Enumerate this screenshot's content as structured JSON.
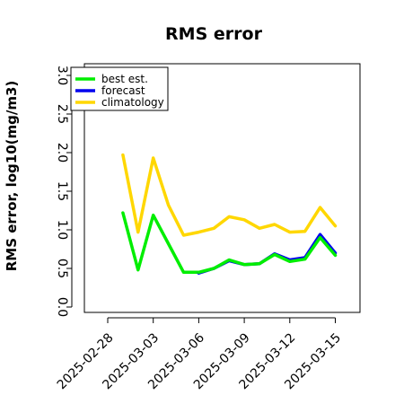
{
  "chart_data": {
    "type": "line",
    "title": "RMS error",
    "xlabel": "",
    "ylabel": "RMS error, log10(mg/m3)",
    "ylim": [
      0.0,
      3.0
    ],
    "yticks": [
      "0.0",
      "0.5",
      "1.0",
      "1.5",
      "2.0",
      "2.5",
      "3.0"
    ],
    "xticks": [
      {
        "label": "2025-02-28",
        "color": "#000000"
      },
      {
        "label": "2025-03-03",
        "color": "#000000"
      },
      {
        "label": "2025-03-06",
        "color": "#2e8b22"
      },
      {
        "label": "2025-03-09",
        "color": "#000000"
      },
      {
        "label": "2025-03-12",
        "color": "#000000"
      },
      {
        "label": "2025-03-15",
        "color": "#000000"
      }
    ],
    "grid": false,
    "legend_position": "top-left",
    "series": [
      {
        "name": "best est.",
        "color": "#00ee00",
        "points": [
          [
            "2025-03-01",
            1.22
          ],
          [
            "2025-03-02",
            0.48
          ],
          [
            "2025-03-03",
            1.19
          ],
          [
            "2025-03-04",
            0.82
          ],
          [
            "2025-03-05",
            0.45
          ],
          [
            "2025-03-06",
            0.45
          ]
        ]
      },
      {
        "name": "forecast",
        "color": "#0000ee",
        "points": [
          [
            "2025-03-06",
            0.44
          ],
          [
            "2025-03-07",
            0.5
          ],
          [
            "2025-03-08",
            0.6
          ],
          [
            "2025-03-09",
            0.55
          ],
          [
            "2025-03-10",
            0.56
          ],
          [
            "2025-03-11",
            0.69
          ],
          [
            "2025-03-12",
            0.61
          ],
          [
            "2025-03-13",
            0.64
          ],
          [
            "2025-03-14",
            0.94
          ],
          [
            "2025-03-15",
            0.7
          ]
        ]
      },
      {
        "name": "climatology",
        "color": "#ffd700",
        "points": [
          [
            "2025-03-01",
            1.97
          ],
          [
            "2025-03-02",
            0.97
          ],
          [
            "2025-03-03",
            1.93
          ],
          [
            "2025-03-04",
            1.32
          ],
          [
            "2025-03-05",
            0.93
          ],
          [
            "2025-03-06",
            0.97
          ],
          [
            "2025-03-07",
            1.02
          ],
          [
            "2025-03-08",
            1.17
          ],
          [
            "2025-03-09",
            1.13
          ],
          [
            "2025-03-10",
            1.02
          ],
          [
            "2025-03-11",
            1.07
          ],
          [
            "2025-03-12",
            0.97
          ],
          [
            "2025-03-13",
            0.98
          ],
          [
            "2025-03-14",
            1.29
          ],
          [
            "2025-03-15",
            1.05
          ]
        ]
      },
      {
        "name": "",
        "color": "#00ee00",
        "points": [
          [
            "2025-03-06",
            0.45
          ],
          [
            "2025-03-07",
            0.5
          ],
          [
            "2025-03-08",
            0.61
          ],
          [
            "2025-03-09",
            0.55
          ],
          [
            "2025-03-10",
            0.56
          ],
          [
            "2025-03-11",
            0.68
          ],
          [
            "2025-03-12",
            0.59
          ],
          [
            "2025-03-13",
            0.62
          ],
          [
            "2025-03-14",
            0.9
          ],
          [
            "2025-03-15",
            0.67
          ]
        ]
      }
    ]
  }
}
